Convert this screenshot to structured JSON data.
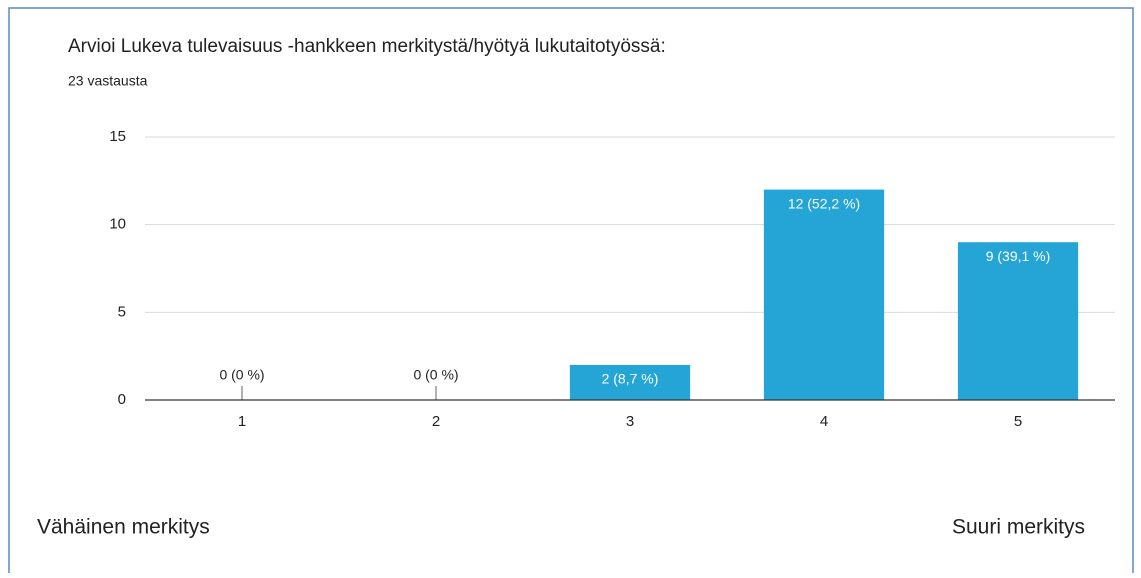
{
  "chart_data": {
    "type": "bar",
    "title": "Arvioi Lukeva tulevaisuus -hankkeen merkitystä/hyötyä lukutaitotyössä:",
    "subtitle": "23 vastausta",
    "categories": [
      "1",
      "2",
      "3",
      "4",
      "5"
    ],
    "values": [
      0,
      0,
      2,
      12,
      9
    ],
    "value_labels": [
      "0 (0 %)",
      "0 (0 %)",
      "2 (8,7 %)",
      "12 (52,2 %)",
      "9 (39,1 %)"
    ],
    "color": "#24a5d6",
    "ylim": [
      0,
      15
    ],
    "yticks": [
      0,
      5,
      10,
      15
    ],
    "grid": true,
    "annotations": [
      "Vähäinen merkitys",
      "Suuri merkitys"
    ]
  }
}
